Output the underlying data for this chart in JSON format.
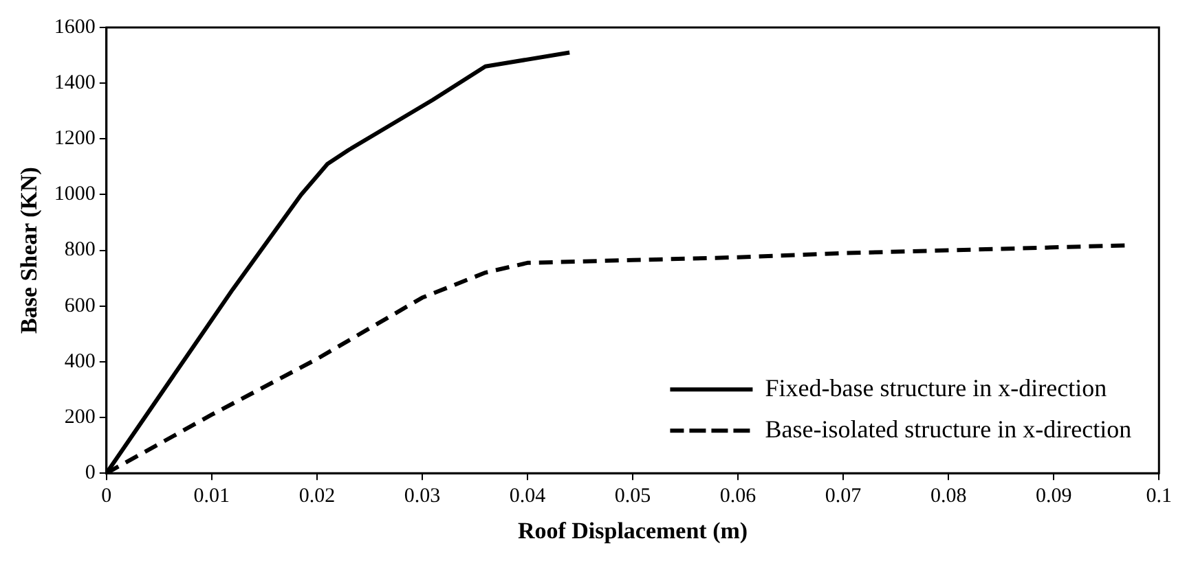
{
  "chart_data": {
    "type": "line",
    "xlabel": "Roof Displacement (m)",
    "ylabel": "Base Shear (KN)",
    "xlim": [
      0,
      0.1
    ],
    "xticks": [
      0,
      0.01,
      0.02,
      0.03,
      0.04,
      0.05,
      0.06,
      0.07,
      0.08,
      0.09,
      0.1
    ],
    "ylim": [
      0,
      1600
    ],
    "yticks": [
      0,
      200,
      400,
      600,
      800,
      1000,
      1200,
      1400,
      1600
    ],
    "grid": false,
    "legend": "bottom right",
    "marker": "none",
    "series": [
      {
        "name": "Fixed-base structure in x-direction",
        "color": "#000000",
        "line_style": "solid",
        "x": [
          0,
          0.012,
          0.0185,
          0.021,
          0.023,
          0.027,
          0.031,
          0.036,
          0.044
        ],
        "values": [
          0,
          660,
          1000,
          1110,
          1160,
          1250,
          1340,
          1460,
          1510
        ]
      },
      {
        "name": "Base-isolated structure in x-direction",
        "color": "#000000",
        "line_style": "dashed",
        "x": [
          0,
          0.01,
          0.02,
          0.03,
          0.036,
          0.04,
          0.05,
          0.06,
          0.07,
          0.08,
          0.097
        ],
        "values": [
          0,
          210,
          410,
          630,
          720,
          755,
          765,
          775,
          790,
          800,
          818
        ]
      }
    ]
  }
}
